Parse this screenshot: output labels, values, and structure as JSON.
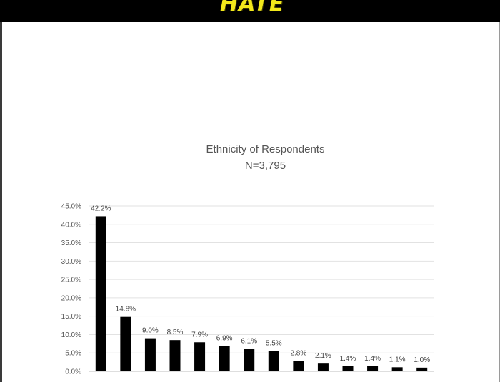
{
  "header": {
    "logo_text": "HATE",
    "logo_color": "#f2e81b",
    "background": "#000000"
  },
  "chart_data": {
    "type": "bar",
    "title": "Ethnicity of Respondents",
    "subtitle": "N=3,795",
    "ylim": [
      0,
      45
    ],
    "y_tick_step": 5,
    "y_ticks": [
      "0.0%",
      "5.0%",
      "10.0%",
      "15.0%",
      "20.0%",
      "25.0%",
      "30.0%",
      "35.0%",
      "40.0%",
      "45.0%"
    ],
    "grid": true,
    "bar_color": "#000000",
    "categories": [
      "",
      "",
      "",
      "",
      "",
      "",
      "",
      "",
      "",
      "",
      "",
      "",
      "",
      ""
    ],
    "values": [
      42.2,
      14.8,
      9.0,
      8.5,
      7.9,
      6.9,
      6.1,
      5.5,
      2.8,
      2.1,
      1.4,
      1.4,
      1.1,
      1.0
    ],
    "data_labels": [
      "42.2%",
      "14.8%",
      "9.0%",
      "8.5%",
      "7.9%",
      "6.9%",
      "6.1%",
      "5.5%",
      "2.8%",
      "2.1%",
      "1.4%",
      "1.4%",
      "1.1%",
      "1.0%"
    ]
  }
}
